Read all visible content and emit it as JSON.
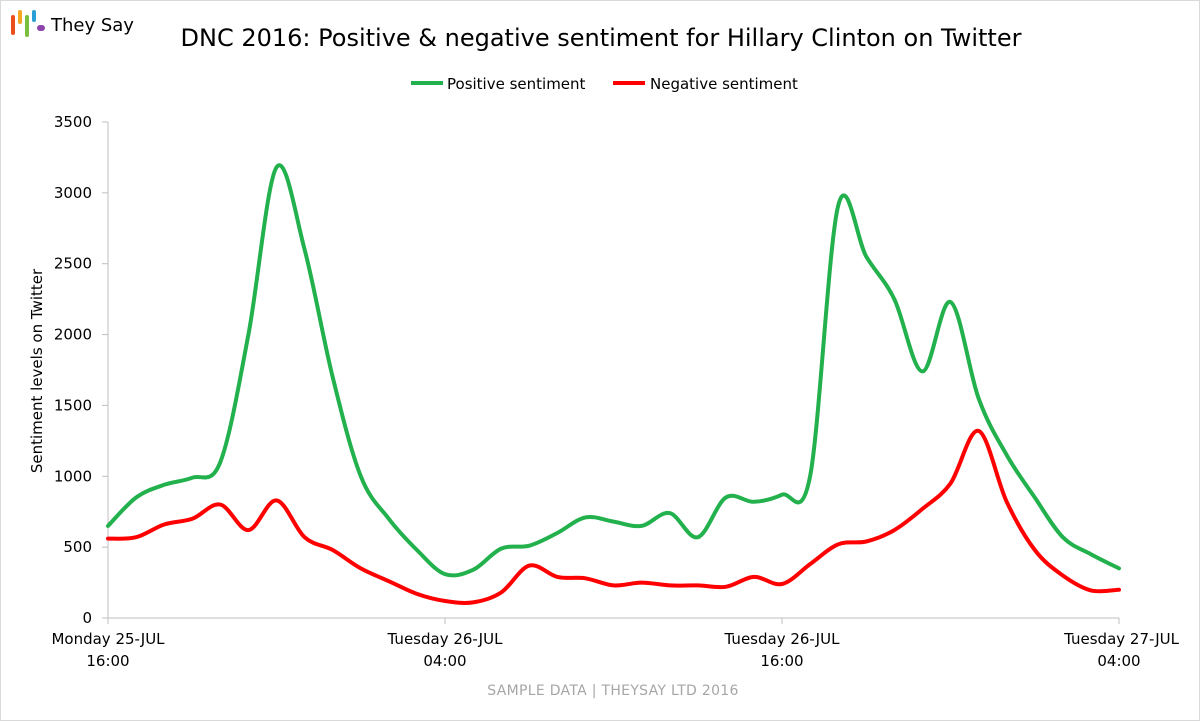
{
  "brand": {
    "name": "They Say",
    "logo_colors": [
      "#e94e1b",
      "#f5a623",
      "#7bbf3f",
      "#2a9fd6",
      "#8e44ad"
    ]
  },
  "chart_data": {
    "type": "line",
    "title": "DNC 2016: Positive & negative sentiment for Hillary Clinton on Twitter",
    "ylabel": "Sentiment levels on Twitter",
    "xlabel": "",
    "ylim": [
      0,
      3500
    ],
    "yticks": [
      0,
      500,
      1000,
      1500,
      2000,
      2500,
      3000,
      3500
    ],
    "xlim": [
      0,
      36
    ],
    "xticks": [
      {
        "x": 0,
        "line1": "Monday 25-JUL",
        "line2": "16:00"
      },
      {
        "x": 12,
        "line1": "Tuesday 26-JUL",
        "line2": "04:00"
      },
      {
        "x": 24,
        "line1": "Tuesday 26-JUL",
        "line2": "16:00"
      },
      {
        "x": 36,
        "line1": "Tuesday 27-JUL",
        "line2": "04:00"
      }
    ],
    "legend_position": "top-center",
    "grid": false,
    "series": [
      {
        "name": "Positive sentiment",
        "color": "#22b14c",
        "points": [
          [
            0,
            650
          ],
          [
            1,
            850
          ],
          [
            2,
            940
          ],
          [
            3,
            990
          ],
          [
            4,
            1100
          ],
          [
            5,
            2000
          ],
          [
            6,
            3180
          ],
          [
            7,
            2600
          ],
          [
            8,
            1700
          ],
          [
            9,
            1000
          ],
          [
            10,
            700
          ],
          [
            11,
            480
          ],
          [
            12,
            310
          ],
          [
            13,
            340
          ],
          [
            14,
            490
          ],
          [
            15,
            510
          ],
          [
            16,
            600
          ],
          [
            17,
            710
          ],
          [
            18,
            680
          ],
          [
            19,
            650
          ],
          [
            20,
            740
          ],
          [
            21,
            570
          ],
          [
            22,
            850
          ],
          [
            23,
            820
          ],
          [
            24,
            870
          ],
          [
            25,
            1000
          ],
          [
            26,
            2910
          ],
          [
            27,
            2550
          ],
          [
            28,
            2250
          ],
          [
            29,
            1740
          ],
          [
            30,
            2230
          ],
          [
            31,
            1550
          ],
          [
            32,
            1150
          ],
          [
            33,
            850
          ],
          [
            34,
            570
          ],
          [
            35,
            450
          ],
          [
            36,
            350
          ]
        ]
      },
      {
        "name": "Negative sentiment",
        "color": "#ff0000",
        "points": [
          [
            0,
            560
          ],
          [
            1,
            570
          ],
          [
            2,
            660
          ],
          [
            3,
            700
          ],
          [
            4,
            800
          ],
          [
            5,
            620
          ],
          [
            6,
            830
          ],
          [
            7,
            570
          ],
          [
            8,
            480
          ],
          [
            9,
            350
          ],
          [
            10,
            260
          ],
          [
            11,
            170
          ],
          [
            12,
            120
          ],
          [
            13,
            110
          ],
          [
            14,
            180
          ],
          [
            15,
            370
          ],
          [
            16,
            290
          ],
          [
            17,
            280
          ],
          [
            18,
            230
          ],
          [
            19,
            250
          ],
          [
            20,
            230
          ],
          [
            21,
            230
          ],
          [
            22,
            220
          ],
          [
            23,
            290
          ],
          [
            24,
            240
          ],
          [
            25,
            380
          ],
          [
            26,
            520
          ],
          [
            27,
            540
          ],
          [
            28,
            620
          ],
          [
            29,
            770
          ],
          [
            30,
            950
          ],
          [
            31,
            1320
          ],
          [
            32,
            820
          ],
          [
            33,
            480
          ],
          [
            34,
            300
          ],
          [
            35,
            195
          ],
          [
            36,
            200
          ]
        ]
      }
    ]
  },
  "footer": "SAMPLE DATA | THEYSAY LTD 2016"
}
